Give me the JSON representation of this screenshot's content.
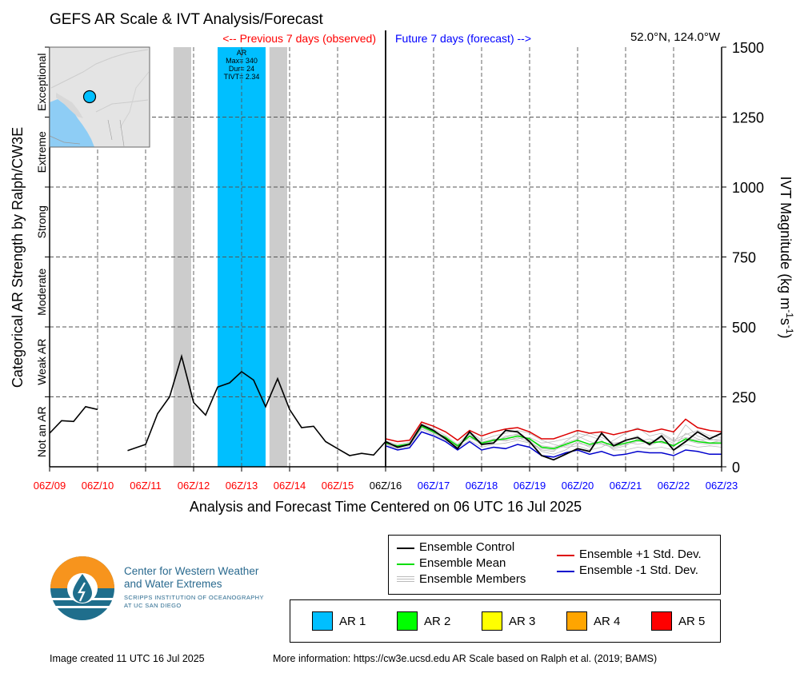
{
  "chart_data": {
    "type": "line",
    "title": "GEFS AR Scale & IVT Analysis/Forecast",
    "previous_label": "<-- Previous 7 days (observed)",
    "future_label": "Future 7 days (forecast) -->",
    "location": "52.0°N, 124.0°W",
    "xlabel": "Analysis and Forecast Time Centered on 06 UTC 16 Jul 2025",
    "left_ylabel": "Categorical AR Strength by Ralph/CW3E",
    "right_ylabel_main": "IVT Magnitude (kg m",
    "right_ylabel_sup1": "-1",
    "right_ylabel_mid": "s",
    "right_ylabel_sup2": "-1",
    "right_ylabel_end": ")",
    "ylim": [
      0,
      1500
    ],
    "yticks": [
      0,
      250,
      500,
      750,
      1000,
      1250,
      1500
    ],
    "xlim": [
      0,
      14
    ],
    "x_ticks": [
      {
        "x": 0,
        "label": "06Z/09",
        "color": "#ff0000"
      },
      {
        "x": 1,
        "label": "06Z/10",
        "color": "#ff0000"
      },
      {
        "x": 2,
        "label": "06Z/11",
        "color": "#ff0000"
      },
      {
        "x": 3,
        "label": "06Z/12",
        "color": "#ff0000"
      },
      {
        "x": 4,
        "label": "06Z/13",
        "color": "#ff0000"
      },
      {
        "x": 5,
        "label": "06Z/14",
        "color": "#ff0000"
      },
      {
        "x": 6,
        "label": "06Z/15",
        "color": "#ff0000"
      },
      {
        "x": 7,
        "label": "06Z/16",
        "color": "#000000"
      },
      {
        "x": 8,
        "label": "06Z/17",
        "color": "#0000ff"
      },
      {
        "x": 9,
        "label": "06Z/18",
        "color": "#0000ff"
      },
      {
        "x": 10,
        "label": "06Z/19",
        "color": "#0000ff"
      },
      {
        "x": 11,
        "label": "06Z/20",
        "color": "#0000ff"
      },
      {
        "x": 12,
        "label": "06Z/21",
        "color": "#0000ff"
      },
      {
        "x": 13,
        "label": "06Z/22",
        "color": "#0000ff"
      },
      {
        "x": 14,
        "label": "06Z/23",
        "color": "#0000ff"
      }
    ],
    "categories": [
      {
        "label": "Not an AR",
        "from": 0,
        "to": 250
      },
      {
        "label": "Weak AR",
        "from": 250,
        "to": 500
      },
      {
        "label": "Moderate",
        "from": 500,
        "to": 750
      },
      {
        "label": "Strong",
        "from": 750,
        "to": 1000
      },
      {
        "label": "Extreme",
        "from": 1000,
        "to": 1250
      },
      {
        "label": "Exceptional",
        "from": 1250,
        "to": 1500
      }
    ],
    "ar_events": [
      {
        "type": "AR 1",
        "start": 3.5,
        "end": 4.5,
        "color": "#00bfff",
        "annotation": [
          "AR",
          "Max= 340",
          "Dur= 24",
          "TIVT= 2.34"
        ]
      }
    ],
    "gray_periods": [
      [
        2.58,
        2.95
      ],
      [
        4.58,
        4.95
      ]
    ],
    "observed_segments": [
      [
        [
          0,
          120
        ],
        [
          0.25,
          165
        ],
        [
          0.5,
          162
        ],
        [
          0.75,
          215
        ],
        [
          1.0,
          205
        ]
      ],
      [
        [
          1.625,
          58
        ],
        [
          2.0,
          80
        ],
        [
          2.25,
          190
        ],
        [
          2.5,
          250
        ],
        [
          2.75,
          395
        ],
        [
          3.0,
          230
        ],
        [
          3.25,
          185
        ],
        [
          3.5,
          285
        ],
        [
          3.75,
          300
        ],
        [
          4.0,
          340
        ],
        [
          4.25,
          310
        ],
        [
          4.5,
          215
        ],
        [
          4.75,
          315
        ],
        [
          5.0,
          205
        ],
        [
          5.25,
          140
        ],
        [
          5.5,
          145
        ],
        [
          5.75,
          90
        ],
        [
          6.0,
          65
        ],
        [
          6.25,
          40
        ],
        [
          6.5,
          48
        ],
        [
          6.75,
          42
        ],
        [
          7.0,
          90
        ]
      ]
    ],
    "series": [
      {
        "name": "Ensemble Control",
        "color": "#000000",
        "x": [
          7.0,
          7.25,
          7.5,
          7.75,
          8.0,
          8.25,
          8.5,
          8.75,
          9.0,
          9.25,
          9.5,
          9.75,
          10.0,
          10.25,
          10.5,
          10.75,
          11.0,
          11.25,
          11.5,
          11.75,
          12.0,
          12.25,
          12.5,
          12.75,
          13.0,
          13.25,
          13.5,
          13.75,
          14.0
        ],
        "values": [
          90,
          70,
          80,
          150,
          130,
          100,
          65,
          125,
          80,
          85,
          130,
          125,
          90,
          40,
          25,
          45,
          65,
          55,
          120,
          75,
          95,
          105,
          80,
          110,
          60,
          90,
          125,
          100,
          120
        ]
      },
      {
        "name": "Ensemble Mean",
        "color": "#00dd00",
        "x": [
          7.0,
          7.25,
          7.5,
          7.75,
          8.0,
          8.25,
          8.5,
          8.75,
          9.0,
          9.25,
          9.5,
          9.75,
          10.0,
          10.25,
          10.5,
          10.75,
          11.0,
          11.25,
          11.5,
          11.75,
          12.0,
          12.25,
          12.5,
          12.75,
          13.0,
          13.25,
          13.5,
          13.75,
          14.0
        ],
        "values": [
          85,
          75,
          82,
          145,
          125,
          105,
          75,
          110,
          85,
          95,
          100,
          110,
          100,
          70,
          65,
          80,
          95,
          80,
          90,
          75,
          85,
          95,
          85,
          90,
          75,
          100,
          90,
          85,
          85
        ]
      },
      {
        "name": "Ensemble +1 Std. Dev.",
        "color": "#dd0000",
        "x": [
          7.0,
          7.25,
          7.5,
          7.75,
          8.0,
          8.25,
          8.5,
          8.75,
          9.0,
          9.25,
          9.5,
          9.75,
          10.0,
          10.25,
          10.5,
          10.75,
          11.0,
          11.25,
          11.5,
          11.75,
          12.0,
          12.25,
          12.5,
          12.75,
          13.0,
          13.25,
          13.5,
          13.75,
          14.0
        ],
        "values": [
          100,
          90,
          95,
          160,
          145,
          125,
          95,
          130,
          110,
          125,
          135,
          140,
          125,
          100,
          100,
          115,
          130,
          120,
          125,
          115,
          125,
          135,
          125,
          135,
          125,
          170,
          140,
          130,
          125
        ]
      },
      {
        "name": "Ensemble -1 Std. Dev.",
        "color": "#0000cc",
        "x": [
          7.0,
          7.25,
          7.5,
          7.75,
          8.0,
          8.25,
          8.5,
          8.75,
          9.0,
          9.25,
          9.5,
          9.75,
          10.0,
          10.25,
          10.5,
          10.75,
          11.0,
          11.25,
          11.5,
          11.75,
          12.0,
          12.25,
          12.5,
          12.75,
          13.0,
          13.25,
          13.5,
          13.75,
          14.0
        ],
        "values": [
          75,
          60,
          68,
          125,
          110,
          90,
          60,
          90,
          60,
          70,
          65,
          80,
          70,
          40,
          35,
          50,
          60,
          45,
          55,
          40,
          45,
          55,
          50,
          50,
          40,
          60,
          55,
          45,
          45
        ]
      }
    ],
    "members": {
      "name": "Ensemble Members",
      "color": "#bbbbbb",
      "x": [
        7.0,
        7.25,
        7.5,
        7.75,
        8.0,
        8.25,
        8.5,
        8.75,
        9.0,
        9.25,
        9.5,
        9.75,
        10.0,
        10.25,
        10.5,
        10.75,
        11.0,
        11.25,
        11.5,
        11.75,
        12.0,
        12.25,
        12.5,
        12.75,
        13.0,
        13.25,
        13.5,
        13.75,
        14.0
      ],
      "values": [
        [
          88,
          72,
          85,
          150,
          128,
          102,
          70,
          118,
          82,
          92,
          105,
          118,
          95,
          55,
          45,
          60,
          90,
          70,
          115,
          80,
          95,
          110,
          75,
          95,
          70,
          120,
          100,
          85,
          95
        ],
        [
          82,
          68,
          78,
          140,
          120,
          98,
          78,
          102,
          88,
          100,
          95,
          100,
          105,
          85,
          90,
          100,
          110,
          90,
          80,
          70,
          80,
          90,
          100,
          85,
          80,
          95,
          85,
          80,
          80
        ],
        [
          92,
          80,
          88,
          155,
          135,
          112,
          80,
          125,
          95,
          110,
          120,
          130,
          120,
          95,
          80,
          70,
          75,
          60,
          70,
          95,
          120,
          140,
          110,
          120,
          95,
          115,
          130,
          110,
          105
        ],
        [
          80,
          65,
          75,
          135,
          115,
          95,
          68,
          95,
          70,
          80,
          85,
          95,
          85,
          60,
          55,
          90,
          120,
          110,
          95,
          60,
          60,
          70,
          65,
          70,
          60,
          80,
          70,
          75,
          70
        ],
        [
          86,
          74,
          80,
          145,
          125,
          108,
          72,
          112,
          90,
          85,
          110,
          115,
          100,
          75,
          70,
          85,
          100,
          120,
          105,
          85,
          90,
          80,
          90,
          100,
          85,
          150,
          110,
          95,
          100
        ],
        [
          84,
          70,
          84,
          142,
          122,
          100,
          76,
          108,
          78,
          98,
          92,
          105,
          88,
          65,
          60,
          75,
          85,
          75,
          85,
          65,
          75,
          100,
          80,
          115,
          90,
          105,
          95,
          100,
          90
        ]
      ]
    }
  },
  "legend": {
    "control_label": "Ensemble Control",
    "mean_label": "Ensemble Mean",
    "members_label": "Ensemble Members",
    "plus_label": "Ensemble +1 Std. Dev.",
    "minus_label": "Ensemble -1 Std. Dev.",
    "ar_items": [
      {
        "label": "AR 1",
        "color": "#00bfff"
      },
      {
        "label": "AR 2",
        "color": "#00ff00"
      },
      {
        "label": "AR 3",
        "color": "#ffff00"
      },
      {
        "label": "AR 4",
        "color": "#ffa500"
      },
      {
        "label": "AR 5",
        "color": "#ff0000"
      }
    ]
  },
  "logo": {
    "line1": "Center for Western Weather",
    "line2": "and Water Extremes",
    "line3": "SCRIPPS INSTITUTION OF OCEANOGRAPHY",
    "line4": "AT UC SAN DIEGO",
    "accent_orange": "#f7941d",
    "accent_blue": "#1f6e8c"
  },
  "footer": {
    "created": "Image created 11 UTC 16 Jul 2025",
    "info": "More information: https://cw3e.ucsd.edu AR Scale based on Ralph et al. (2019; BAMS)"
  }
}
